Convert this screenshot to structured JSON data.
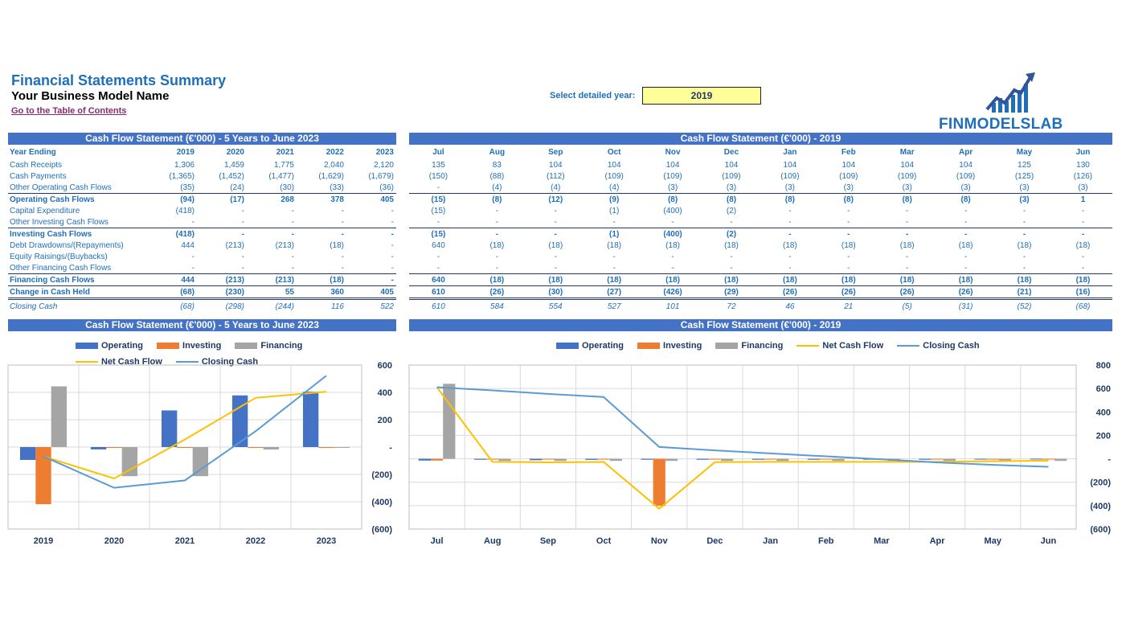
{
  "header": {
    "title": "Financial Statements Summary",
    "subtitle": "Your Business Model Name",
    "toc_link": "Go to the Table of Contents",
    "select_label": "Select detailed year:",
    "select_value": "2019",
    "logo_text": "FINMODELSLAB"
  },
  "left_table": {
    "banner": "Cash Flow Statement (€'000) - 5 Years to June 2023",
    "header_label": "Year Ending",
    "years": [
      "2019",
      "2020",
      "2021",
      "2022",
      "2023"
    ],
    "rows": [
      {
        "label": "Cash Receipts",
        "values": [
          "1,306",
          "1,459",
          "1,775",
          "2,040",
          "2,120"
        ],
        "style": ""
      },
      {
        "label": "Cash Payments",
        "values": [
          "(1,365)",
          "(1,452)",
          "(1,477)",
          "(1,629)",
          "(1,679)"
        ],
        "style": ""
      },
      {
        "label": "Other Operating Cash Flows",
        "values": [
          "(35)",
          "(24)",
          "(30)",
          "(33)",
          "(36)"
        ],
        "style": ""
      },
      {
        "label": "Operating Cash Flows",
        "values": [
          "(94)",
          "(17)",
          "268",
          "378",
          "405"
        ],
        "style": "total"
      },
      {
        "label": "Capital Expenditure",
        "values": [
          "(418)",
          "-",
          "-",
          "-",
          "-"
        ],
        "style": ""
      },
      {
        "label": "Other Investing Cash Flows",
        "values": [
          "-",
          "-",
          "-",
          "-",
          "-"
        ],
        "style": ""
      },
      {
        "label": "Investing Cash Flows",
        "values": [
          "(418)",
          "-",
          "-",
          "-",
          "-"
        ],
        "style": "total"
      },
      {
        "label": "Debt Drawdowns/(Repayments)",
        "values": [
          "444",
          "(213)",
          "(213)",
          "(18)",
          "-"
        ],
        "style": ""
      },
      {
        "label": "Equity Raisings/(Buybacks)",
        "values": [
          "-",
          "-",
          "-",
          "-",
          "-"
        ],
        "style": ""
      },
      {
        "label": "Other Financing Cash Flows",
        "values": [
          "-",
          "-",
          "-",
          "-",
          "-"
        ],
        "style": ""
      },
      {
        "label": "Financing Cash Flows",
        "values": [
          "444",
          "(213)",
          "(213)",
          "(18)",
          "-"
        ],
        "style": "total"
      },
      {
        "label": "Change in Cash Held",
        "values": [
          "(68)",
          "(230)",
          "55",
          "360",
          "405"
        ],
        "style": "total2"
      },
      {
        "label": "Closing Cash",
        "values": [
          "(68)",
          "(298)",
          "(244)",
          "116",
          "522"
        ],
        "style": "closing"
      }
    ]
  },
  "right_table": {
    "banner": "Cash Flow Statement (€'000) - 2019",
    "months": [
      "Jul",
      "Aug",
      "Sep",
      "Oct",
      "Nov",
      "Dec",
      "Jan",
      "Feb",
      "Mar",
      "Apr",
      "May",
      "Jun"
    ],
    "rows": [
      {
        "values": [
          "135",
          "83",
          "104",
          "104",
          "104",
          "104",
          "104",
          "104",
          "104",
          "104",
          "125",
          "130"
        ],
        "style": ""
      },
      {
        "values": [
          "(150)",
          "(88)",
          "(112)",
          "(109)",
          "(109)",
          "(109)",
          "(109)",
          "(109)",
          "(109)",
          "(109)",
          "(125)",
          "(126)"
        ],
        "style": ""
      },
      {
        "values": [
          "-",
          "(4)",
          "(4)",
          "(4)",
          "(3)",
          "(3)",
          "(3)",
          "(3)",
          "(3)",
          "(3)",
          "(3)",
          "(3)"
        ],
        "style": ""
      },
      {
        "values": [
          "(15)",
          "(8)",
          "(12)",
          "(9)",
          "(8)",
          "(8)",
          "(8)",
          "(8)",
          "(8)",
          "(8)",
          "(3)",
          "1"
        ],
        "style": "total"
      },
      {
        "values": [
          "(15)",
          "-",
          "-",
          "(1)",
          "(400)",
          "(2)",
          "-",
          "-",
          "-",
          "-",
          "-",
          "-"
        ],
        "style": ""
      },
      {
        "values": [
          "-",
          "-",
          "-",
          "-",
          "-",
          "-",
          "-",
          "-",
          "-",
          "-",
          "-",
          "-"
        ],
        "style": ""
      },
      {
        "values": [
          "(15)",
          "-",
          "-",
          "(1)",
          "(400)",
          "(2)",
          "-",
          "-",
          "-",
          "-",
          "-",
          "-"
        ],
        "style": "total"
      },
      {
        "values": [
          "640",
          "(18)",
          "(18)",
          "(18)",
          "(18)",
          "(18)",
          "(18)",
          "(18)",
          "(18)",
          "(18)",
          "(18)",
          "(18)"
        ],
        "style": ""
      },
      {
        "values": [
          "-",
          "-",
          "-",
          "-",
          "-",
          "-",
          "-",
          "-",
          "-",
          "-",
          "-",
          "-"
        ],
        "style": ""
      },
      {
        "values": [
          "-",
          "-",
          "-",
          "-",
          "-",
          "-",
          "-",
          "-",
          "-",
          "-",
          "-",
          "-"
        ],
        "style": ""
      },
      {
        "values": [
          "640",
          "(18)",
          "(18)",
          "(18)",
          "(18)",
          "(18)",
          "(18)",
          "(18)",
          "(18)",
          "(18)",
          "(18)",
          "(18)"
        ],
        "style": "total"
      },
      {
        "values": [
          "610",
          "(26)",
          "(30)",
          "(27)",
          "(426)",
          "(29)",
          "(26)",
          "(26)",
          "(26)",
          "(26)",
          "(21)",
          "(16)"
        ],
        "style": "total2"
      },
      {
        "values": [
          "610",
          "584",
          "554",
          "527",
          "101",
          "72",
          "46",
          "21",
          "(5)",
          "(31)",
          "(52)",
          "(68)"
        ],
        "style": "closing"
      }
    ]
  },
  "legend": {
    "operating": "Operating",
    "investing": "Investing",
    "financing": "Financing",
    "net": "Net Cash Flow",
    "closing": "Closing Cash"
  },
  "colors": {
    "banner": "#4472c4",
    "operating": "#4472c4",
    "investing": "#ed7d31",
    "financing": "#a5a5a5",
    "net": "#ffc000",
    "closing": "#5b9bd5"
  },
  "chart_data": [
    {
      "type": "bar",
      "title": "Cash Flow Statement (€'000) - 5 Years to June 2023",
      "categories": [
        "2019",
        "2020",
        "2021",
        "2022",
        "2023"
      ],
      "series": [
        {
          "name": "Operating",
          "kind": "bar",
          "values": [
            -94,
            -17,
            268,
            378,
            405
          ]
        },
        {
          "name": "Investing",
          "kind": "bar",
          "values": [
            -418,
            0,
            0,
            0,
            0
          ]
        },
        {
          "name": "Financing",
          "kind": "bar",
          "values": [
            444,
            -213,
            -213,
            -18,
            0
          ]
        },
        {
          "name": "Net Cash Flow",
          "kind": "line",
          "values": [
            -68,
            -230,
            55,
            360,
            405
          ]
        },
        {
          "name": "Closing Cash",
          "kind": "line",
          "values": [
            -68,
            -298,
            -244,
            116,
            522
          ]
        }
      ],
      "ylim": [
        -600,
        600
      ],
      "yticks": [
        -600,
        -400,
        -200,
        0,
        200,
        400,
        600
      ],
      "ytick_labels": [
        "(600)",
        "(400)",
        "(200)",
        "-",
        "200",
        "400",
        "600"
      ],
      "legend": "top",
      "grid": true
    },
    {
      "type": "bar",
      "title": "Cash Flow Statement (€'000) - 2019",
      "categories": [
        "Jul",
        "Aug",
        "Sep",
        "Oct",
        "Nov",
        "Dec",
        "Jan",
        "Feb",
        "Mar",
        "Apr",
        "May",
        "Jun"
      ],
      "series": [
        {
          "name": "Operating",
          "kind": "bar",
          "values": [
            -15,
            -8,
            -12,
            -9,
            -8,
            -8,
            -8,
            -8,
            -8,
            -8,
            -3,
            1
          ]
        },
        {
          "name": "Investing",
          "kind": "bar",
          "values": [
            -15,
            0,
            0,
            -1,
            -400,
            -2,
            0,
            0,
            0,
            0,
            0,
            0
          ]
        },
        {
          "name": "Financing",
          "kind": "bar",
          "values": [
            640,
            -18,
            -18,
            -18,
            -18,
            -18,
            -18,
            -18,
            -18,
            -18,
            -18,
            -18
          ]
        },
        {
          "name": "Net Cash Flow",
          "kind": "line",
          "values": [
            610,
            -26,
            -30,
            -27,
            -426,
            -29,
            -26,
            -26,
            -26,
            -26,
            -21,
            -16
          ]
        },
        {
          "name": "Closing Cash",
          "kind": "line",
          "values": [
            610,
            584,
            554,
            527,
            101,
            72,
            46,
            21,
            -5,
            -31,
            -52,
            -68
          ]
        }
      ],
      "ylim": [
        -600,
        800
      ],
      "yticks": [
        -600,
        -400,
        -200,
        0,
        200,
        400,
        600,
        800
      ],
      "ytick_labels": [
        "(600)",
        "(400)",
        "(200)",
        "-",
        "200",
        "400",
        "600",
        "800"
      ],
      "legend": "top",
      "grid": true
    }
  ]
}
